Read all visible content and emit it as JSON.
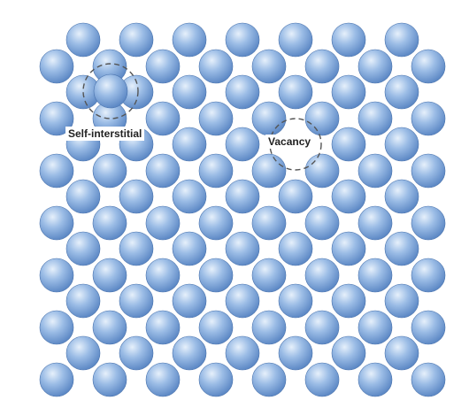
{
  "diagram": {
    "colors": {
      "atom_highlight": "#e6f0fb",
      "atom_mid": "#9cbde6",
      "atom_dark": "#5b87c4",
      "atom_edge": "#4a73ad",
      "defect_outline": "#555555",
      "background": "#ffffff"
    },
    "lattice": {
      "rows_main": 7,
      "cols_main": 8,
      "rows_offset": 6,
      "cols_offset": 7
    },
    "defects": [
      {
        "type": "self-interstitial",
        "label": "Self-interstitial"
      },
      {
        "type": "vacancy",
        "label": "Vacancy"
      }
    ]
  }
}
